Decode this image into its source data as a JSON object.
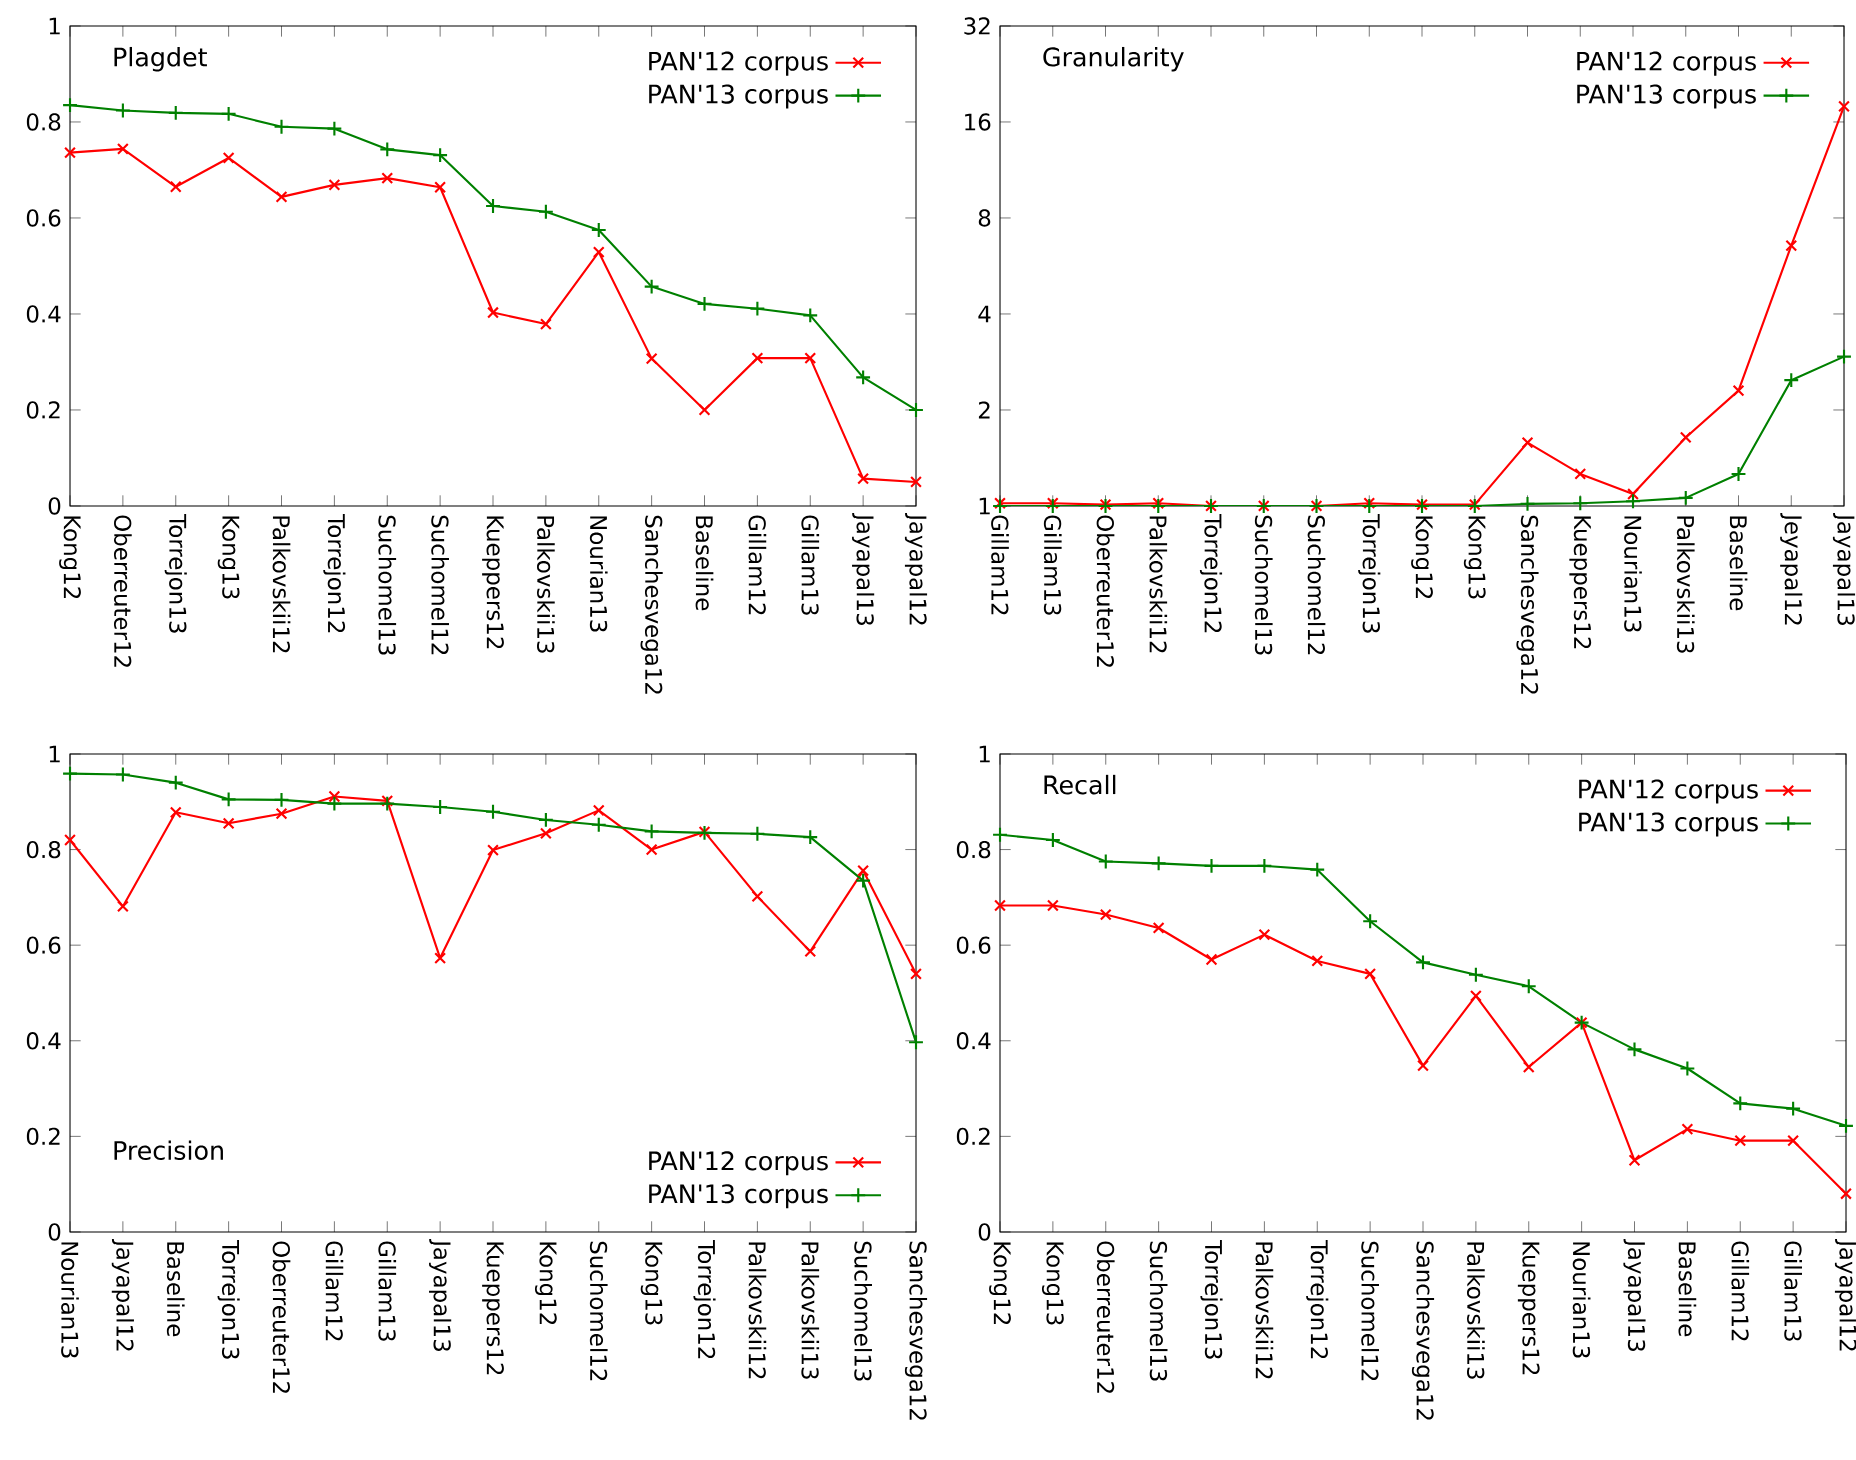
{
  "chart_data": [
    {
      "type": "line",
      "title": "Plagdet",
      "legend": "top right",
      "ylim": [
        0,
        1
      ],
      "yticks": [
        0,
        0.2,
        0.4,
        0.6,
        0.8,
        1
      ],
      "categories": [
        "Kong12",
        "Oberreuter12",
        "Torrejon13",
        "Kong13",
        "Palkovskii12",
        "Torrejon12",
        "Suchomel13",
        "Suchomel12",
        "Kueppers12",
        "Palkovskii13",
        "Nourian13",
        "Sanchesvega12",
        "Baseline",
        "Gillam12",
        "Gillam13",
        "Jayapal13",
        "Jayapal12"
      ],
      "series": [
        {
          "name": "PAN'12 corpus",
          "color": "#ff0000",
          "marker": "cross",
          "values": [
            0.736,
            0.744,
            0.665,
            0.725,
            0.644,
            0.669,
            0.683,
            0.664,
            0.403,
            0.379,
            0.529,
            0.307,
            0.2,
            0.308,
            0.308,
            0.057,
            0.05
          ]
        },
        {
          "name": "PAN'13 corpus",
          "color": "#008000",
          "marker": "plus",
          "values": [
            0.835,
            0.824,
            0.819,
            0.817,
            0.79,
            0.786,
            0.743,
            0.731,
            0.625,
            0.613,
            0.575,
            0.457,
            0.421,
            0.411,
            0.397,
            0.268,
            0.2
          ]
        }
      ]
    },
    {
      "type": "line",
      "title": "Granularity",
      "legend": "top right",
      "log": "y",
      "ylim": [
        1,
        32
      ],
      "yticks": [
        1,
        2,
        4,
        8,
        16,
        32
      ],
      "categories": [
        "Gillam12",
        "Gillam13",
        "Oberreuter12",
        "Palkovskii12",
        "Torrejon12",
        "Suchomel13",
        "Suchomel12",
        "Torrejon13",
        "Kong12",
        "Kong13",
        "Sanchesvega12",
        "Kueppers12",
        "Nourian13",
        "Palkovskii13",
        "Baseline",
        "Jeyapal12",
        "Jayapal13"
      ],
      "series": [
        {
          "name": "PAN'12 corpus",
          "color": "#ff0000",
          "marker": "cross",
          "values": [
            1.02,
            1.02,
            1.01,
            1.02,
            1.0,
            1.0,
            1.0,
            1.02,
            1.01,
            1.01,
            1.58,
            1.26,
            1.09,
            1.64,
            2.3,
            6.55,
            17.9
          ]
        },
        {
          "name": "PAN'13 corpus",
          "color": "#008000",
          "marker": "plus",
          "values": [
            1.0,
            1.0,
            1.0,
            1.0,
            1.0,
            1.0,
            1.0,
            1.0,
            1.0,
            1.0,
            1.015,
            1.02,
            1.035,
            1.06,
            1.26,
            2.48,
            2.94
          ]
        }
      ]
    },
    {
      "type": "line",
      "title": "Precision",
      "legend": "bottom right",
      "ylim": [
        0,
        1
      ],
      "yticks": [
        0,
        0.2,
        0.4,
        0.6,
        0.8,
        1
      ],
      "categories": [
        "Nourian13",
        "Jayapal12",
        "Baseline",
        "Torrejon13",
        "Oberreuter12",
        "Gillam12",
        "Gillam13",
        "Jayapal13",
        "Kueppers12",
        "Kong12",
        "Suchomel12",
        "Kong13",
        "Torrejon12",
        "Palkovskii12",
        "Palkovskii13",
        "Suchomel13",
        "Sanchesvega12"
      ],
      "series": [
        {
          "name": "PAN'12 corpus",
          "color": "#ff0000",
          "marker": "cross",
          "values": [
            0.82,
            0.681,
            0.878,
            0.855,
            0.875,
            0.911,
            0.902,
            0.573,
            0.799,
            0.834,
            0.882,
            0.8,
            0.837,
            0.702,
            0.587,
            0.756,
            0.54
          ]
        },
        {
          "name": "PAN'13 corpus",
          "color": "#008000",
          "marker": "plus",
          "values": [
            0.959,
            0.957,
            0.94,
            0.905,
            0.904,
            0.896,
            0.896,
            0.889,
            0.879,
            0.862,
            0.852,
            0.838,
            0.835,
            0.833,
            0.826,
            0.735,
            0.397
          ]
        }
      ]
    },
    {
      "type": "line",
      "title": "Recall",
      "legend": "top right",
      "ylim": [
        0,
        1
      ],
      "yticks": [
        0,
        0.2,
        0.4,
        0.6,
        0.8,
        1
      ],
      "categories": [
        "Kong12",
        "Kong13",
        "Oberreuter12",
        "Suchomel13",
        "Torrejon13",
        "Palkovskii12",
        "Torrejon12",
        "Suchomel12",
        "Sanchesvega12",
        "Palkovskii13",
        "Kueppers12",
        "Nourian13",
        "Jayapal13",
        "Baseline",
        "Gillam12",
        "Gillam13",
        "Jayapal12"
      ],
      "series": [
        {
          "name": "PAN'12 corpus",
          "color": "#ff0000",
          "marker": "cross",
          "values": [
            0.683,
            0.683,
            0.664,
            0.636,
            0.57,
            0.622,
            0.567,
            0.54,
            0.348,
            0.494,
            0.345,
            0.438,
            0.15,
            0.215,
            0.191,
            0.191,
            0.08
          ]
        },
        {
          "name": "PAN'13 corpus",
          "color": "#008000",
          "marker": "plus",
          "values": [
            0.831,
            0.82,
            0.775,
            0.771,
            0.766,
            0.766,
            0.758,
            0.65,
            0.564,
            0.538,
            0.514,
            0.438,
            0.382,
            0.342,
            0.269,
            0.258,
            0.222
          ]
        }
      ]
    }
  ]
}
